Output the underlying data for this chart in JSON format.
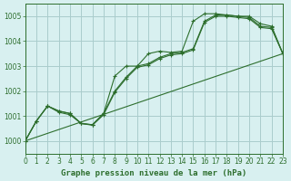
{
  "background_color": "#d8f0f0",
  "grid_color": "#aacccc",
  "line_color": "#2d6e2d",
  "title": "Graphe pression niveau de la mer (hPa)",
  "xlim": [
    0,
    23
  ],
  "ylim": [
    999.5,
    1005.5
  ],
  "yticks": [
    1000,
    1001,
    1002,
    1003,
    1004,
    1005
  ],
  "xticks": [
    0,
    1,
    2,
    3,
    4,
    5,
    6,
    7,
    8,
    9,
    10,
    11,
    12,
    13,
    14,
    15,
    16,
    17,
    18,
    19,
    20,
    21,
    22,
    23
  ],
  "series1": {
    "x": [
      0,
      1,
      2,
      3,
      4,
      5,
      6,
      7,
      8,
      9,
      10,
      11,
      12,
      13,
      14,
      15,
      16,
      17,
      18,
      19,
      20,
      21,
      22,
      23
    ],
    "y": [
      1000.0,
      1000.8,
      1001.4,
      1001.2,
      1001.1,
      1000.7,
      1000.65,
      1001.1,
      1002.6,
      1003.0,
      1003.0,
      1003.5,
      1003.6,
      1003.55,
      1003.6,
      1004.8,
      1005.1,
      1005.1,
      1005.05,
      1005.0,
      1005.0,
      1004.7,
      1004.6,
      1003.5
    ]
  },
  "series2": {
    "x": [
      0,
      1,
      2,
      3,
      4,
      5,
      6,
      7,
      8,
      9,
      10,
      11,
      12,
      13,
      14,
      15,
      16,
      17,
      18,
      19,
      20,
      21,
      22,
      23
    ],
    "y": [
      1000.0,
      1000.8,
      1001.4,
      1001.2,
      1001.1,
      1000.7,
      1000.65,
      1001.1,
      1002.0,
      1002.55,
      1003.0,
      1003.1,
      1003.35,
      1003.5,
      1003.55,
      1003.7,
      1004.8,
      1005.05,
      1005.05,
      1005.0,
      1004.95,
      1004.6,
      1004.55,
      1003.5
    ]
  },
  "series3": {
    "x": [
      0,
      23
    ],
    "y": [
      1000.0,
      1003.5
    ]
  },
  "series4": {
    "x": [
      0,
      1,
      2,
      3,
      4,
      5,
      6,
      7,
      8,
      9,
      10,
      11,
      12,
      13,
      14,
      15,
      16,
      17,
      18,
      19,
      20,
      21,
      22,
      23
    ],
    "y": [
      1000.0,
      1000.8,
      1001.4,
      1001.15,
      1001.05,
      1000.7,
      1000.63,
      1001.05,
      1001.95,
      1002.5,
      1002.95,
      1003.05,
      1003.3,
      1003.45,
      1003.5,
      1003.65,
      1004.75,
      1005.0,
      1005.0,
      1004.95,
      1004.9,
      1004.55,
      1004.5,
      1003.5
    ]
  }
}
